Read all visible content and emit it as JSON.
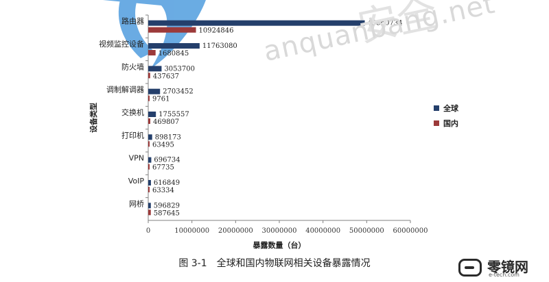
{
  "watermark": {
    "text": "anquanbang.net",
    "cn": "安全"
  },
  "caption": "图 3-1　全球和国内物联网相关设备暴露情况",
  "brand": {
    "name": "零镜网",
    "url": "e-tech.com"
  },
  "colors": {
    "global": "#243f6b",
    "domestic": "#9c3a3a",
    "axis": "#808080",
    "watermark_blue": "#5aa3e0"
  },
  "chart_data": {
    "type": "bar",
    "orientation": "horizontal",
    "title": "",
    "xlabel": "暴露数量（台）",
    "ylabel": "设备类型",
    "xlim": [
      0,
      60000000
    ],
    "xticks": [
      "0",
      "10000000",
      "20000000",
      "30000000",
      "40000000",
      "50000000",
      "60000000"
    ],
    "categories": [
      "路由器",
      "视频监控设备",
      "防火墙",
      "调制解调器",
      "交换机",
      "打印机",
      "VPN",
      "VoIP",
      "网桥"
    ],
    "series": [
      {
        "name": "全球",
        "color": "#243f6b",
        "values": [
          49560734,
          11763080,
          3053700,
          2703452,
          1755557,
          898173,
          696734,
          616849,
          596829
        ]
      },
      {
        "name": "国内",
        "color": "#9c3a3a",
        "values": [
          10924846,
          1680845,
          437637,
          9761,
          469807,
          63495,
          67735,
          63334,
          587645
        ]
      }
    ],
    "legend": "right",
    "grid": false
  }
}
